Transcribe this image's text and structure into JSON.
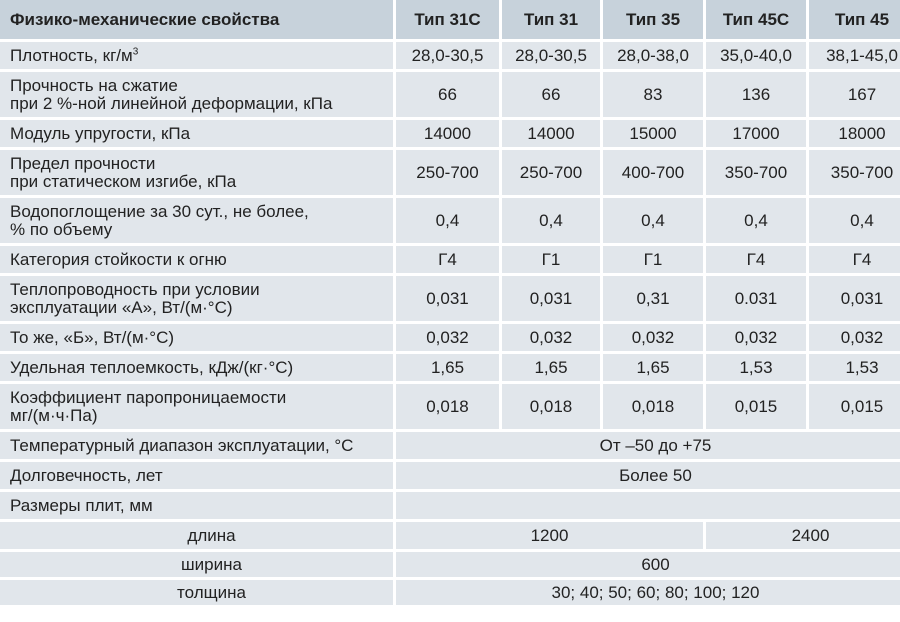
{
  "header": {
    "label": "Физико-механические свойства",
    "types": [
      "Тип 31С",
      "Тип 31",
      "Тип 35",
      "Тип 45С",
      "Тип 45"
    ]
  },
  "rows": [
    {
      "label": "Плотность, кг/м",
      "sup": "3",
      "values": [
        "28,0-30,5",
        "28,0-30,5",
        "28,0-38,0",
        "35,0-40,0",
        "38,1-45,0"
      ]
    },
    {
      "label1": "Прочность на сжатие",
      "label2": "при 2 %-ной линейной деформации, кПа",
      "values": [
        "66",
        "66",
        "83",
        "136",
        "167"
      ]
    },
    {
      "label": "Модуль упругости, кПа",
      "values": [
        "14000",
        "14000",
        "15000",
        "17000",
        "18000"
      ]
    },
    {
      "label1": "Предел прочности",
      "label2": "при статическом изгибе, кПа",
      "values": [
        "250-700",
        "250-700",
        "400-700",
        "350-700",
        "350-700"
      ]
    },
    {
      "label1": "Водопоглощение за 30 сут., не более,",
      "label2": "% по объему",
      "values": [
        "0,4",
        "0,4",
        "0,4",
        "0,4",
        "0,4"
      ]
    },
    {
      "label": "Категория стойкости к огню",
      "values": [
        "Г4",
        "Г1",
        "Г1",
        "Г4",
        "Г4"
      ]
    },
    {
      "label1": "Теплопроводность при условии",
      "label2": "эксплуатации «А», Вт/(м·°С)",
      "values": [
        "0,031",
        "0,031",
        "0,31",
        "0.031",
        "0,031"
      ]
    },
    {
      "label": "То же, «Б», Вт/(м·°С)",
      "values": [
        "0,032",
        "0,032",
        "0,032",
        "0,032",
        "0,032"
      ]
    },
    {
      "label": "Удельная теплоемкость, кДж/(кг·°С)",
      "values": [
        "1,65",
        "1,65",
        "1,65",
        "1,53",
        "1,53"
      ]
    },
    {
      "label1": "Коэффициент паропроницаемости",
      "label2": "мг/(м·ч·Па)",
      "values": [
        "0,018",
        "0,018",
        "0,018",
        "0,015",
        "0,015"
      ]
    }
  ],
  "temperature": {
    "label": "Температурный диапазон эксплуатации, °С",
    "value": "От –50 до +75"
  },
  "durability": {
    "label": "Долговечность, лет",
    "value": "Более 50"
  },
  "sizes": {
    "label": "Размеры плит, мм",
    "length": {
      "label": "длина",
      "value_a": "1200",
      "value_b": "2400"
    },
    "width": {
      "label": "ширина",
      "value": "600"
    },
    "thickness": {
      "label": "толщина",
      "value": "30; 40; 50; 60; 80; 100; 120"
    }
  },
  "colors": {
    "header_bg": "#c7d2db",
    "cell_bg": "#e1e6eb",
    "grid": "#ffffff"
  }
}
